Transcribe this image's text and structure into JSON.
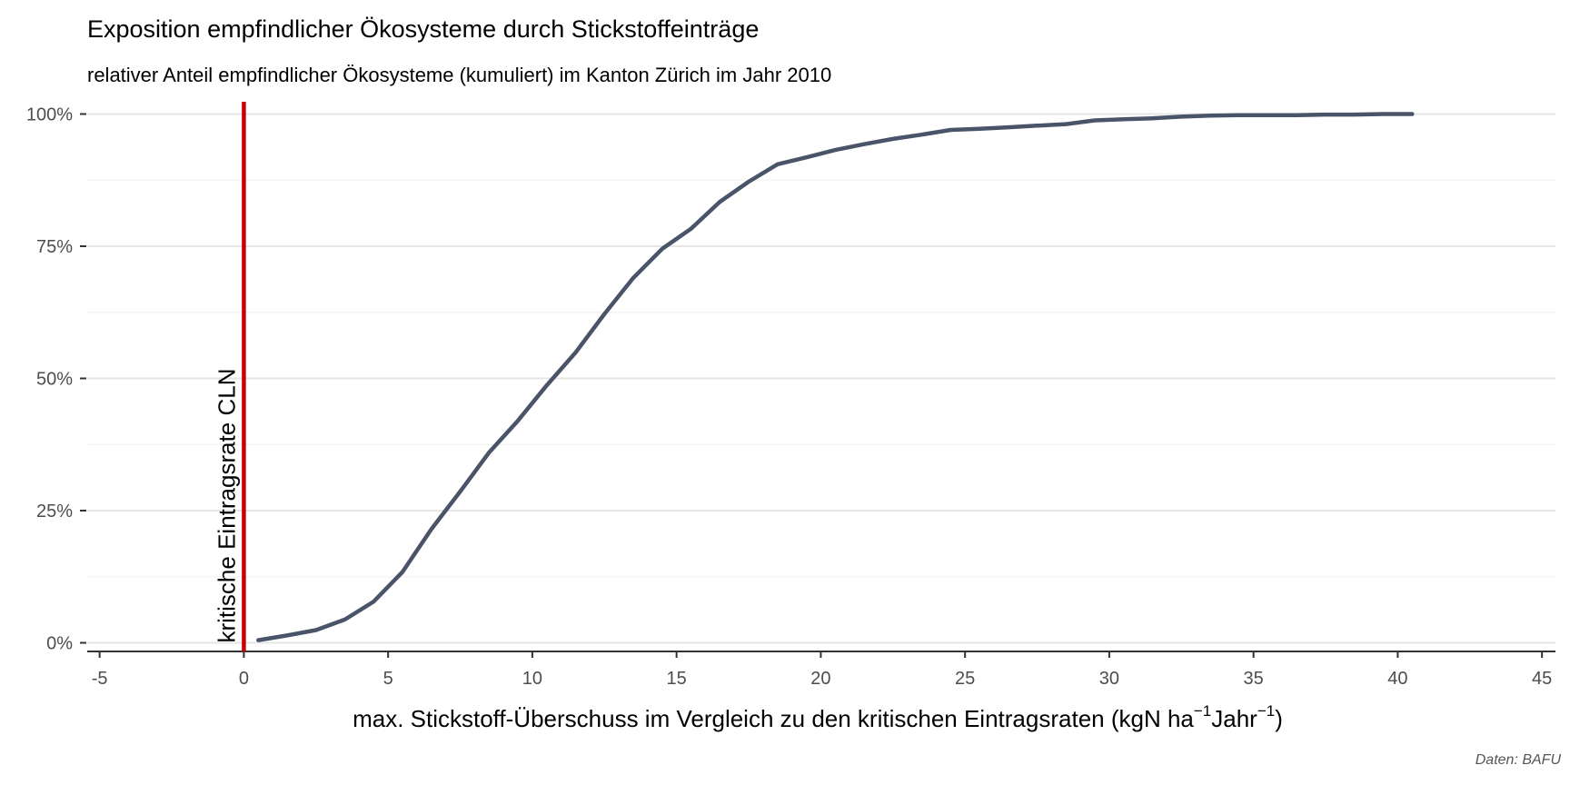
{
  "chart_data": {
    "type": "line",
    "title": "Exposition empfindlicher Ökosysteme durch Stickstoffeinträge",
    "subtitle": "relativer Anteil empfindlicher Ökosysteme (kumuliert) im Kanton Zürich im Jahr 2010",
    "caption": "Daten: BAFU",
    "xlabel": {
      "main": "max. Stickstoff-Überschuss im Vergleich zu den kritischen Eintragsraten (kgN ha",
      "sup1": "−1",
      "mid": "Jahr",
      "sup2": "−1",
      "end": ")"
    },
    "ylabel": "",
    "xlim": [
      -5,
      45
    ],
    "ylim": [
      0,
      1
    ],
    "x_ticks": [
      -5,
      0,
      5,
      10,
      15,
      20,
      25,
      30,
      35,
      40,
      45
    ],
    "x_tick_labels": [
      "-5",
      "0",
      "5",
      "10",
      "15",
      "20",
      "25",
      "30",
      "35",
      "40",
      "45"
    ],
    "y_ticks": [
      0,
      0.25,
      0.5,
      0.75,
      1
    ],
    "y_tick_labels": [
      "0%",
      "25%",
      "50%",
      "75%",
      "100%"
    ],
    "grid": true,
    "series": [
      {
        "color": "#4a5468",
        "x": [
          0.5,
          1.5,
          2.5,
          3.5,
          4.5,
          5.5,
          6.5,
          7.5,
          8.5,
          9.5,
          10.5,
          11.5,
          12.5,
          13.5,
          14.5,
          15.5,
          16.5,
          17.5,
          18.5,
          19.5,
          20.5,
          21.5,
          22.5,
          23.5,
          24.5,
          25.5,
          26.5,
          27.5,
          28.5,
          29.5,
          30.5,
          31.5,
          32.5,
          33.5,
          34.5,
          35.5,
          36.5,
          37.5,
          38.5,
          39.5,
          40.5
        ],
        "y": [
          0.005,
          0.014,
          0.024,
          0.044,
          0.078,
          0.134,
          0.215,
          0.286,
          0.36,
          0.42,
          0.487,
          0.549,
          0.622,
          0.69,
          0.745,
          0.783,
          0.834,
          0.872,
          0.905,
          0.918,
          0.932,
          0.943,
          0.953,
          0.961,
          0.97,
          0.972,
          0.975,
          0.978,
          0.981,
          0.988,
          0.99,
          0.992,
          0.995,
          0.997,
          0.998,
          0.998,
          0.998,
          0.999,
          0.999,
          1.0,
          1.0
        ]
      }
    ],
    "reference_line": {
      "x": 0,
      "color": "#cc0000",
      "label": "kritische Eintragsrate CLN"
    }
  }
}
